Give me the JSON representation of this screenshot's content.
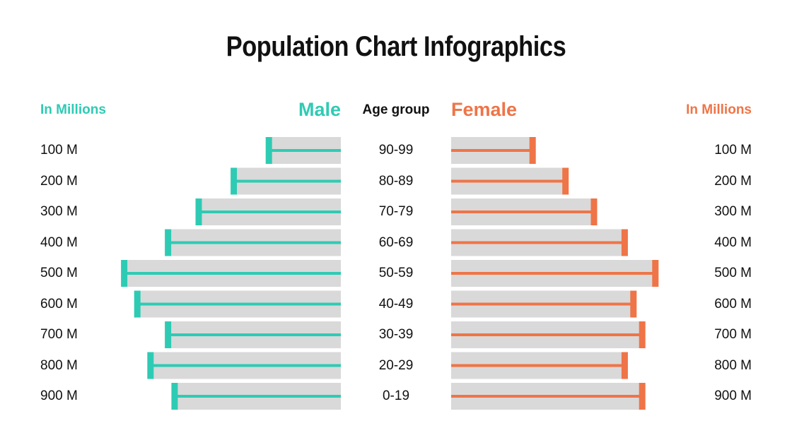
{
  "title": "Population Chart Infographics",
  "headers": {
    "left_unit": "In Millions",
    "male": "Male",
    "age_group": "Age group",
    "female": "Female",
    "right_unit": "In Millions"
  },
  "colors": {
    "male": "#2ecbb4",
    "female": "#ef7447",
    "track": "#d9d9d9"
  },
  "chart_data": {
    "type": "bar",
    "orientation": "horizontal-butterfly",
    "categories": [
      "90-99",
      "80-89",
      "70-79",
      "60-69",
      "50-59",
      "40-49",
      "30-39",
      "20-29",
      "0-19"
    ],
    "row_labels_left": [
      "100 M",
      "200 M",
      "300 M",
      "400 M",
      "500 M",
      "600 M",
      "700 M",
      "800 M",
      "900 M"
    ],
    "row_labels_right": [
      "100 M",
      "200 M",
      "300 M",
      "400 M",
      "500 M",
      "600 M",
      "700 M",
      "800 M",
      "900 M"
    ],
    "value_unit": "percent of full bar scale",
    "series": [
      {
        "name": "Male",
        "values": [
          33,
          49,
          65,
          79,
          99,
          93,
          79,
          87,
          76
        ]
      },
      {
        "name": "Female",
        "values": [
          37,
          52,
          65,
          79,
          93,
          83,
          87,
          79,
          87
        ]
      }
    ]
  }
}
